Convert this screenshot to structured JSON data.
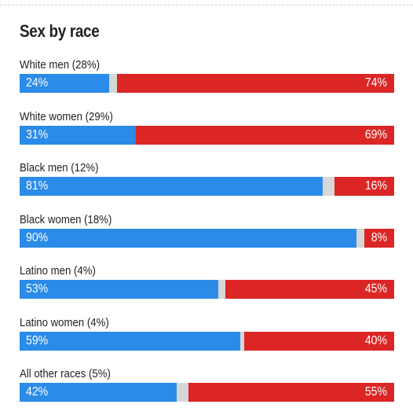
{
  "colors": {
    "dem": "#2a8be8",
    "rep": "#dc2626",
    "other": "#d7d7d7"
  },
  "chart_data": {
    "type": "bar",
    "stacked": true,
    "orientation": "horizontal",
    "title": "Sex by race",
    "categories": [
      "White men (28%)",
      "White women (29%)",
      "Black men (12%)",
      "Black women (18%)",
      "Latino men (4%)",
      "Latino women (4%)",
      "All other races (5%)"
    ],
    "series": [
      {
        "values": [
          24,
          31,
          81,
          90,
          53,
          59,
          42
        ],
        "labels": [
          "24%",
          "31%",
          "81%",
          "90%",
          "53%",
          "59%",
          "42%"
        ]
      },
      {
        "values": [
          74,
          69,
          16,
          8,
          45,
          40,
          55
        ],
        "labels": [
          "74%",
          "69%",
          "16%",
          "8%",
          "45%",
          "40%",
          "55%"
        ]
      }
    ],
    "xlim": [
      0,
      100
    ],
    "grid": false,
    "legend": "none"
  }
}
